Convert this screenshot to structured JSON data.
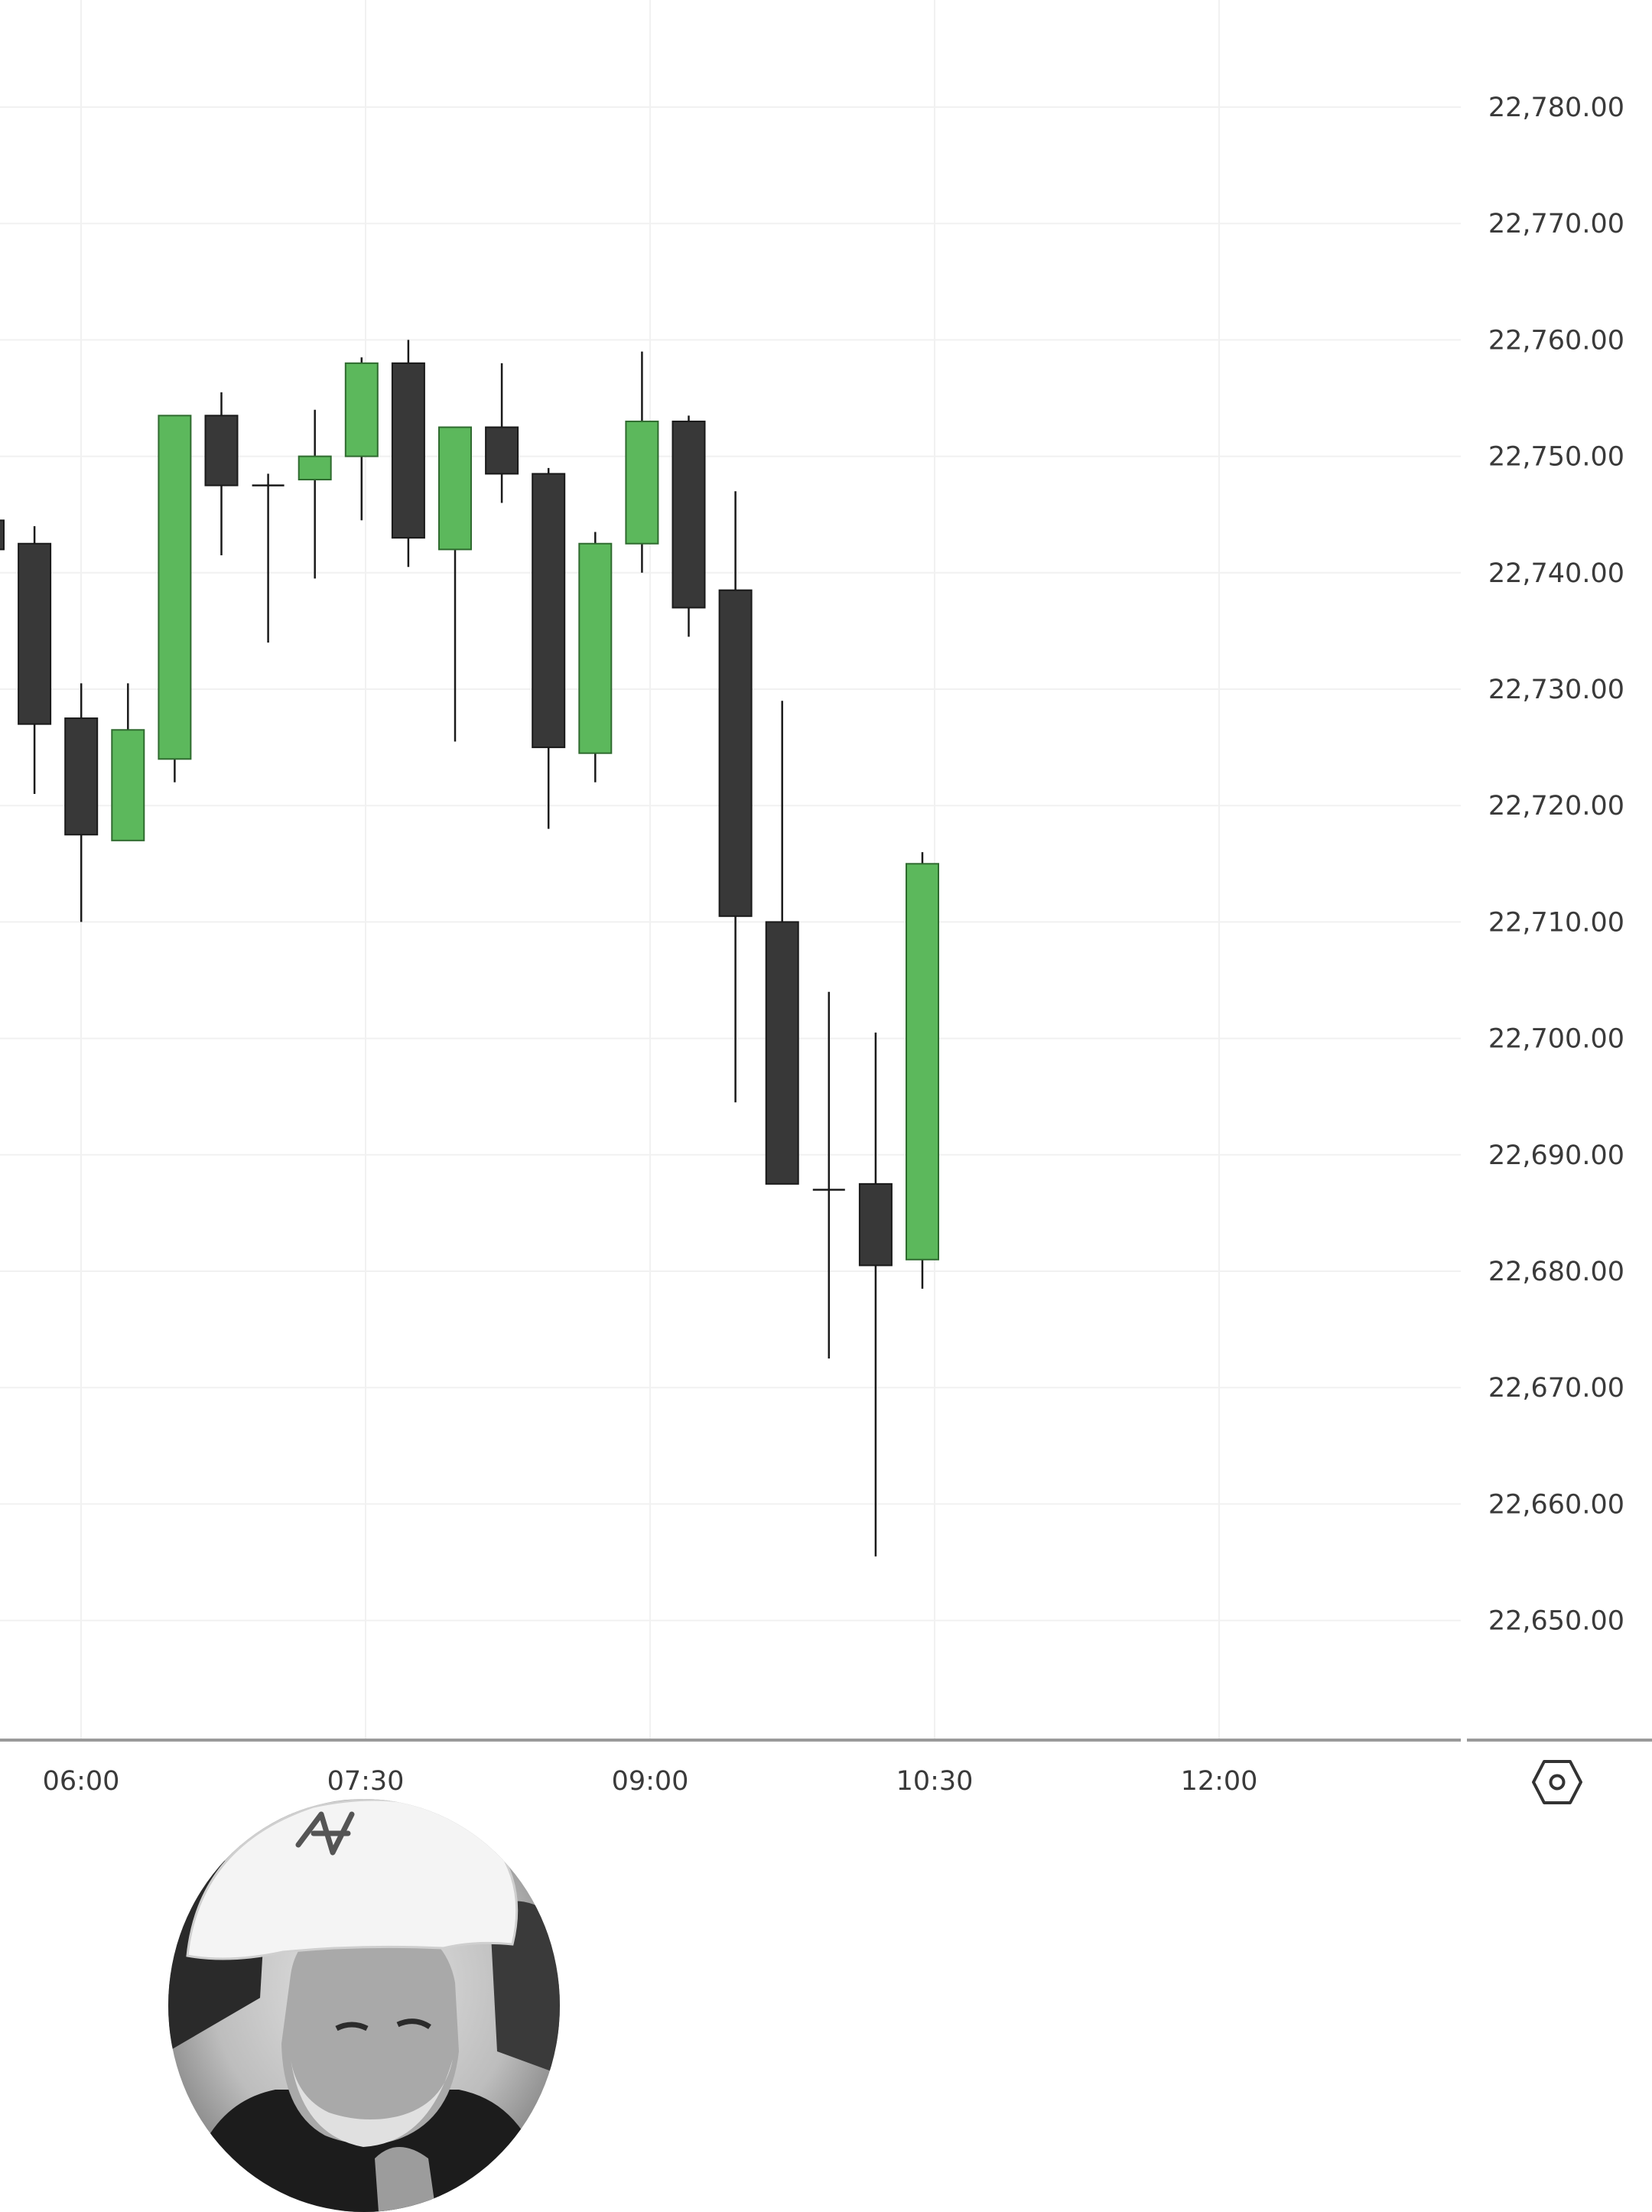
{
  "chart_data": {
    "type": "candlestick",
    "y_axis": {
      "tick_labels": [
        "22,780.00",
        "22,770.00",
        "22,760.00",
        "22,750.00",
        "22,740.00",
        "22,730.00",
        "22,720.00",
        "22,710.00",
        "22,700.00",
        "22,690.00",
        "22,680.00",
        "22,670.00",
        "22,660.00",
        "22,650.00"
      ],
      "ticks": [
        22780,
        22770,
        22760,
        22750,
        22740,
        22730,
        22720,
        22710,
        22700,
        22690,
        22680,
        22670,
        22660,
        22650
      ],
      "range": [
        22641,
        22787
      ]
    },
    "x_axis": {
      "tick_labels": [
        "06:00",
        "07:30",
        "09:00",
        "10:30",
        "12:00"
      ],
      "interval_minutes": 15
    },
    "grid": true,
    "candles": [
      {
        "open": 22744.5,
        "high": 22746.0,
        "low": 22742.0,
        "close": 22742.0
      },
      {
        "open": 22742.5,
        "high": 22744.0,
        "low": 22721.0,
        "close": 22727.0
      },
      {
        "open": 22727.5,
        "high": 22730.5,
        "low": 22710.0,
        "close": 22717.5
      },
      {
        "open": 22717.0,
        "high": 22730.5,
        "low": 22717.0,
        "close": 22726.5
      },
      {
        "open": 22724.0,
        "high": 22753.5,
        "low": 22722.0,
        "close": 22753.5
      },
      {
        "open": 22753.5,
        "high": 22755.5,
        "low": 22741.5,
        "close": 22747.5
      },
      {
        "open": 22747.5,
        "high": 22748.5,
        "low": 22734.0,
        "close": 22747.5
      },
      {
        "open": 22748.0,
        "high": 22754.0,
        "low": 22739.5,
        "close": 22750.0
      },
      {
        "open": 22750.0,
        "high": 22758.5,
        "low": 22744.5,
        "close": 22758.0
      },
      {
        "open": 22758.0,
        "high": 22760.0,
        "low": 22740.5,
        "close": 22743.0
      },
      {
        "open": 22742.0,
        "high": 22752.5,
        "low": 22725.5,
        "close": 22752.5
      },
      {
        "open": 22752.5,
        "high": 22758.0,
        "low": 22746.0,
        "close": 22748.5
      },
      {
        "open": 22748.5,
        "high": 22749.0,
        "low": 22718.0,
        "close": 22725.0
      },
      {
        "open": 22724.5,
        "high": 22743.5,
        "low": 22722.0,
        "close": 22742.5
      },
      {
        "open": 22742.5,
        "high": 22759.0,
        "low": 22740.0,
        "close": 22753.0
      },
      {
        "open": 22753.0,
        "high": 22753.5,
        "low": 22734.5,
        "close": 22737.0
      },
      {
        "open": 22738.5,
        "high": 22747.0,
        "low": 22694.5,
        "close": 22710.5
      },
      {
        "open": 22710.0,
        "high": 22729.0,
        "low": 22687.5,
        "close": 22687.5
      },
      {
        "open": 22687.0,
        "high": 22704.0,
        "low": 22672.5,
        "close": 22687.0
      },
      {
        "open": 22687.5,
        "high": 22700.5,
        "low": 22655.5,
        "close": 22680.5
      },
      {
        "open": 22681.0,
        "high": 22716.0,
        "low": 22678.5,
        "close": 22715.0
      }
    ]
  },
  "colors": {
    "bull_body": "#5cb85c",
    "bear_body": "#383838",
    "wick": "#1a1a1a",
    "grid": "#f1f1f1",
    "axis_line": "#9a9a9a",
    "label": "#3a3a3a"
  },
  "settings_icon": "hexagon-settings-icon",
  "webcam": {
    "icon": "presenter-webcam-overlay"
  }
}
